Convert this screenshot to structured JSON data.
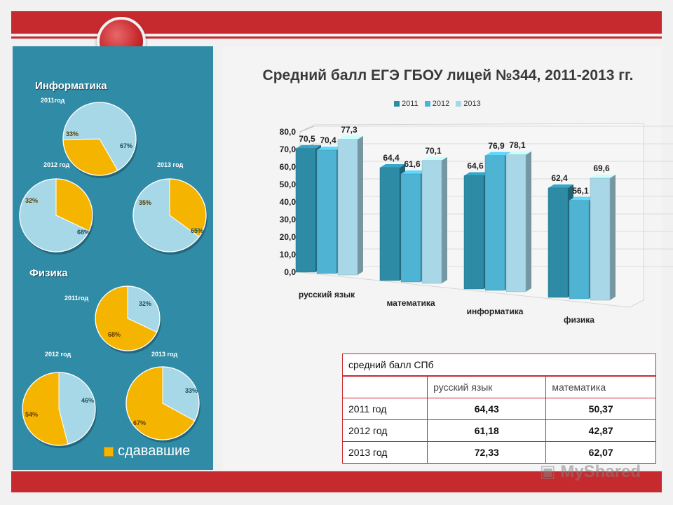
{
  "left_panel": {
    "sections": [
      {
        "title": "Информатика",
        "pies": [
          {
            "label": "2011год",
            "slices": [
              {
                "text": "33%",
                "value": 33,
                "color": "#f5b400"
              },
              {
                "text": "67%",
                "value": 67,
                "color": "#a6d8e8"
              }
            ]
          },
          {
            "label": "2012 год",
            "slices": [
              {
                "text": "32%",
                "value": 32,
                "color": "#f5b400"
              },
              {
                "text": "68%",
                "value": 68,
                "color": "#a6d8e8"
              }
            ]
          },
          {
            "label": "2013 год",
            "slices": [
              {
                "text": "35%",
                "value": 35,
                "color": "#f5b400"
              },
              {
                "text": "65%",
                "value": 65,
                "color": "#a6d8e8"
              }
            ]
          }
        ]
      },
      {
        "title": "Физика",
        "pies": [
          {
            "label": "2011год",
            "slices": [
              {
                "text": "32%",
                "value": 32,
                "color": "#a6d8e8"
              },
              {
                "text": "68%",
                "value": 68,
                "color": "#f5b400"
              }
            ]
          },
          {
            "label": "2012 год",
            "slices": [
              {
                "text": "46%",
                "value": 46,
                "color": "#a6d8e8"
              },
              {
                "text": "54%",
                "value": 54,
                "color": "#f5b400"
              }
            ]
          },
          {
            "label": "2013 год",
            "slices": [
              {
                "text": "33%",
                "value": 33,
                "color": "#a6d8e8"
              },
              {
                "text": "67%",
                "value": 67,
                "color": "#f5b400"
              }
            ]
          }
        ]
      }
    ],
    "legend_label": "сдававшие"
  },
  "chart_data": {
    "type": "bar",
    "title": "Средний балл ЕГЭ ГБОУ лицей №344, 2011-2013 гг.",
    "categories": [
      "русский язык",
      "математика",
      "информатика",
      "физика"
    ],
    "series": [
      {
        "name": "2011",
        "values": [
          70.5,
          64.4,
          64.6,
          62.4
        ],
        "labels": [
          "70,5",
          "64,4",
          "64,6",
          "62,4"
        ],
        "color": "#2e8ba6"
      },
      {
        "name": "2012",
        "values": [
          70.4,
          61.6,
          76.9,
          56.1
        ],
        "labels": [
          "70,4",
          "61,6",
          "76,9",
          "56,1"
        ],
        "color": "#4fb3d4"
      },
      {
        "name": "2013",
        "values": [
          77.3,
          70.1,
          78.1,
          69.6
        ],
        "labels": [
          "77,3",
          "70,1",
          "78,1",
          "69,6"
        ],
        "color": "#a8d7e8"
      }
    ],
    "yticks": [
      "0,0",
      "10,0",
      "20,0",
      "30,0",
      "40,0",
      "50,0",
      "60,0",
      "70,0",
      "80,0"
    ],
    "ylim": [
      0,
      80
    ],
    "legend_position": "top"
  },
  "table": {
    "caption": "средний балл СПб",
    "headers": [
      "",
      "русский язык",
      "математика"
    ],
    "rows": [
      [
        "2011 год",
        "64,43",
        "50,37"
      ],
      [
        "2012 год",
        "61,18",
        "42,87"
      ],
      [
        "2013 год",
        "72,33",
        "62,07"
      ]
    ]
  },
  "watermark": "MyShared"
}
